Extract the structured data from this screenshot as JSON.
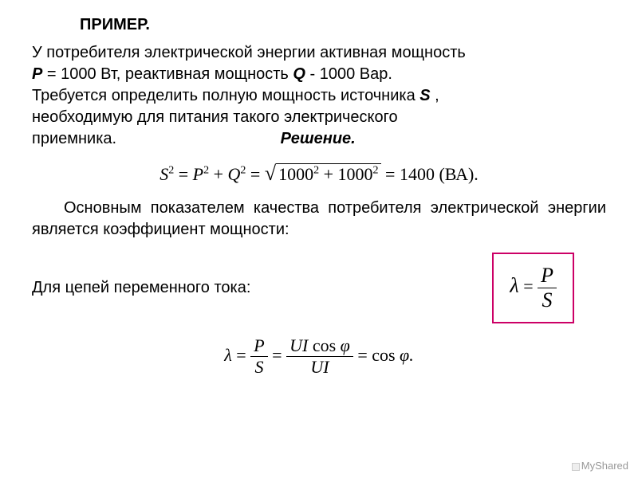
{
  "title": "ПРИМЕР.",
  "problem": {
    "line1": "У потребителя электрической энергии активная мощность",
    "line2_part1": "Р",
    "line2_part2": " = 1000 Вт, реактивная мощность ",
    "line2_part3": "Q",
    "line2_part4": "  - 1000 Вар.",
    "line3_part1": "Требуется определить полную мощность источника ",
    "line3_part2": "S",
    "line3_part3": " ,",
    "line4": "необходимую для питания такого электрического",
    "line5_part1": "приемника.",
    "solution_label": "Решение."
  },
  "formula1": {
    "lhs": "S",
    "sup": "2",
    "eq": " = ",
    "p": "P",
    "plus": " + ",
    "q": "Q",
    "sqrt_content": "1000",
    "result": " = 1400 ",
    "unit": "(ВА)."
  },
  "para2": "Основным показателем качества потребителя электрической энергии является коэффициент мощности:",
  "boxed": {
    "lambda": "λ",
    "eq": " = ",
    "num": "P",
    "den": "S"
  },
  "para3": "Для цепей переменного тока:",
  "formula2": {
    "lambda": "λ",
    "eq": " = ",
    "num1": "P",
    "den1": "S",
    "num2_a": "UI",
    "num2_b": " cos ",
    "num2_c": "φ",
    "den2": "UI",
    "result": " = cos ",
    "phi": "φ.",
    "dot": "."
  },
  "watermark": "MyShared",
  "colors": {
    "text": "#000000",
    "box_border": "#cc0066",
    "watermark": "#999999"
  }
}
